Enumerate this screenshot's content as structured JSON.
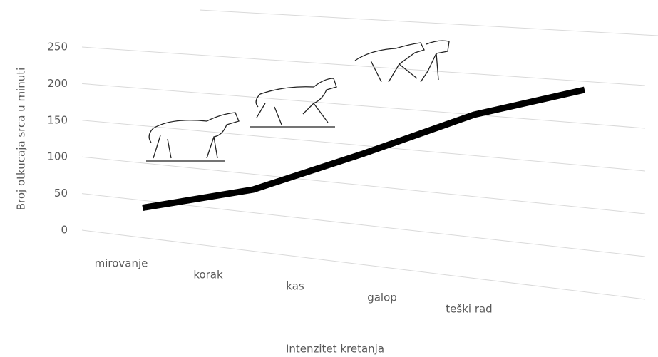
{
  "chart_data": {
    "type": "line3d",
    "y_label": "Broj otkucaja srca u minuti",
    "x_label": "Intenzitet kretanja",
    "categories": [
      "mirovanje",
      "korak",
      "kas",
      "galop",
      "teški rad"
    ],
    "values": [
      40,
      80,
      140,
      200,
      240
    ],
    "color": "#000000",
    "ylim": [
      0,
      250
    ],
    "yticks": [
      0,
      50,
      100,
      150,
      200,
      250
    ],
    "grid": true
  }
}
